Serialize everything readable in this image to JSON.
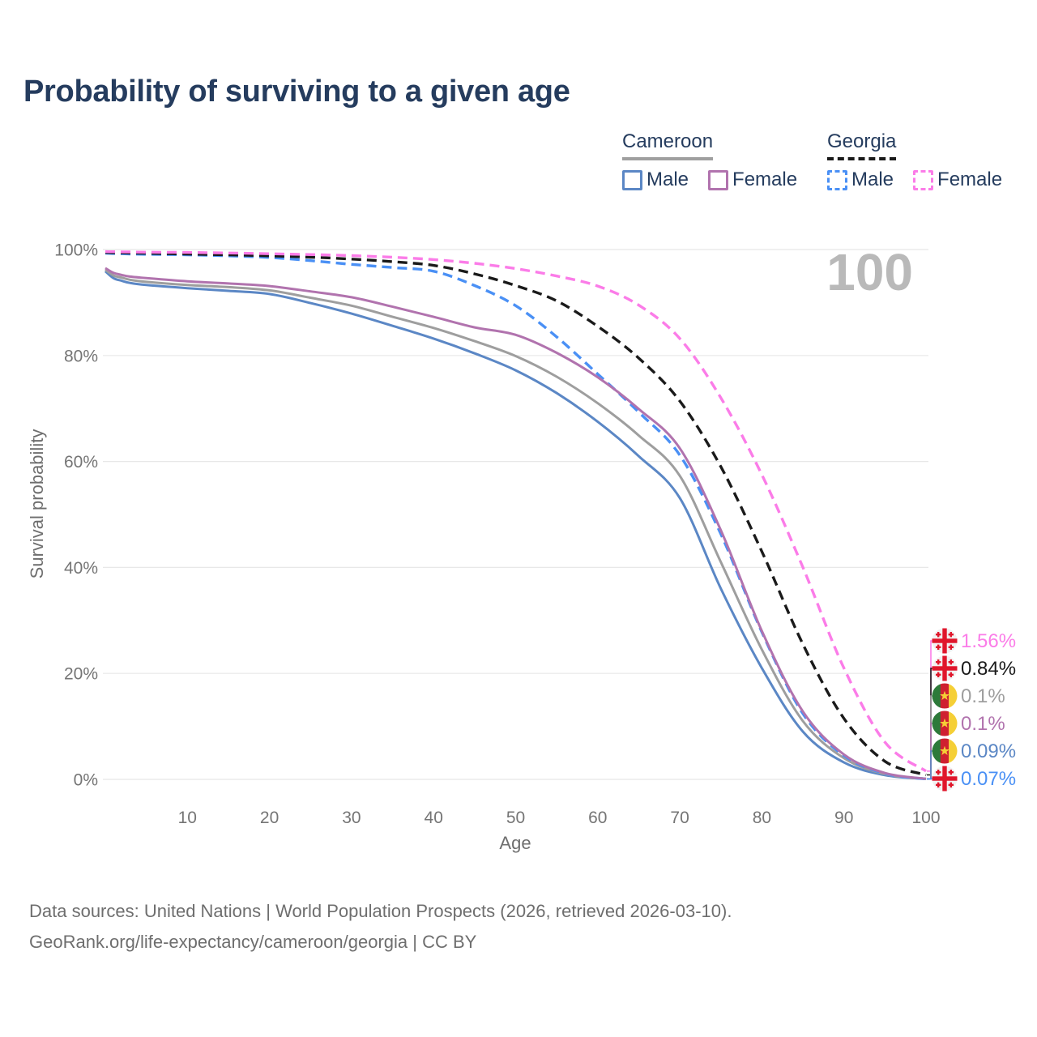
{
  "title": "Probability of surviving to a given age",
  "watermark": "100",
  "legend": {
    "groups": [
      {
        "country": "Cameroon",
        "line_style": "solid",
        "underline_color": "#9f9f9f",
        "items": [
          {
            "label": "Male",
            "color": "#5b87c5"
          },
          {
            "label": "Female",
            "color": "#b173ae"
          }
        ]
      },
      {
        "country": "Georgia",
        "line_style": "dashed",
        "underline_color": "#1a1a1a",
        "items": [
          {
            "label": "Male",
            "color": "#4a90f5"
          },
          {
            "label": "Female",
            "color": "#fb7ce8"
          }
        ]
      }
    ]
  },
  "chart_data": {
    "type": "line",
    "title": "Probability of surviving to a given age",
    "xlabel": "Age",
    "ylabel": "Survival probability",
    "xlim": [
      0,
      100
    ],
    "ylim": [
      0,
      100
    ],
    "grid": true,
    "legend_position": "top-right",
    "x_ticks": [
      {
        "value": 10,
        "label": "10"
      },
      {
        "value": 20,
        "label": "20"
      },
      {
        "value": 30,
        "label": "30"
      },
      {
        "value": 40,
        "label": "40"
      },
      {
        "value": 50,
        "label": "50"
      },
      {
        "value": 60,
        "label": "60"
      },
      {
        "value": 70,
        "label": "70"
      },
      {
        "value": 80,
        "label": "80"
      },
      {
        "value": 90,
        "label": "90"
      },
      {
        "value": 100,
        "label": "100"
      }
    ],
    "y_ticks": [
      {
        "value": 0,
        "label": "0%"
      },
      {
        "value": 20,
        "label": "20%"
      },
      {
        "value": 40,
        "label": "40%"
      },
      {
        "value": 60,
        "label": "60%"
      },
      {
        "value": 80,
        "label": "80%"
      },
      {
        "value": 100,
        "label": "100%"
      }
    ],
    "x": [
      0,
      1,
      2,
      3,
      5,
      10,
      15,
      20,
      25,
      30,
      35,
      40,
      45,
      50,
      55,
      60,
      65,
      70,
      75,
      80,
      85,
      90,
      95,
      100
    ],
    "series": [
      {
        "name": "Cameroon Male",
        "country": "Cameroon",
        "sex": "Male",
        "style": "solid",
        "color": "#5b87c5",
        "flag": "cameroon-flag-icon",
        "end_label": "0.09%",
        "values": [
          95.9,
          94.6,
          94.1,
          93.7,
          93.3,
          92.7,
          92.2,
          91.6,
          89.9,
          87.9,
          85.6,
          83.2,
          80.4,
          77.2,
          72.9,
          67.5,
          61,
          53.1,
          36,
          21,
          9,
          3.2,
          0.8,
          0.09
        ]
      },
      {
        "name": "Cameroon Average",
        "country": "Cameroon",
        "sex": "Both",
        "style": "solid",
        "color": "#9e9e9e",
        "flag": "cameroon-flag-icon",
        "end_label": "0.1%",
        "values": [
          96.2,
          95.1,
          94.7,
          94.3,
          93.9,
          93.3,
          92.9,
          92.3,
          90.9,
          89.4,
          87.3,
          85.2,
          82.7,
          79.9,
          76,
          71,
          64.9,
          57.3,
          41,
          24.5,
          11,
          4,
          1,
          0.1
        ]
      },
      {
        "name": "Georgia Male",
        "country": "Georgia",
        "sex": "Male",
        "style": "dashed",
        "color": "#4a90f5",
        "flag": "georgia-flag-icon",
        "end_label": "0.07%",
        "values": [
          99.3,
          99.25,
          99.2,
          99.15,
          99.1,
          99,
          98.8,
          98.5,
          97.9,
          97.2,
          96.6,
          95.9,
          93.2,
          89.4,
          83.5,
          76.5,
          69.3,
          61.2,
          46.3,
          27.8,
          12.4,
          4.5,
          1.1,
          0.07
        ]
      },
      {
        "name": "Cameroon Female",
        "country": "Cameroon",
        "sex": "Female",
        "style": "solid",
        "color": "#b173ae",
        "flag": "cameroon-flag-icon",
        "end_label": "0.1%",
        "values": [
          96.5,
          95.6,
          95.2,
          94.9,
          94.6,
          94,
          93.6,
          93.1,
          92.1,
          91,
          89.2,
          87.3,
          85.3,
          83.9,
          80.5,
          75.9,
          69.9,
          62.5,
          47,
          28,
          12.8,
          4.7,
          1.2,
          0.1
        ]
      },
      {
        "name": "Georgia Average",
        "country": "Georgia",
        "sex": "Both",
        "style": "dashed",
        "color": "#1a1a1a",
        "flag": "georgia-flag-icon",
        "end_label": "0.84%",
        "values": [
          99.45,
          99.4,
          99.38,
          99.35,
          99.3,
          99.15,
          99,
          98.8,
          98.55,
          98.2,
          97.7,
          97,
          95.4,
          93.2,
          90.3,
          85.5,
          79.5,
          71.4,
          59,
          43,
          25.5,
          11.5,
          3.4,
          0.84
        ]
      },
      {
        "name": "Georgia Female",
        "country": "Georgia",
        "sex": "Female",
        "style": "dashed",
        "color": "#fb7ce8",
        "flag": "georgia-flag-icon",
        "end_label": "1.56%",
        "values": [
          99.6,
          99.58,
          99.56,
          99.54,
          99.5,
          99.45,
          99.35,
          99.2,
          99.05,
          98.85,
          98.55,
          98.1,
          97.4,
          96.4,
          95,
          93.1,
          89.5,
          83.2,
          72,
          57.5,
          40,
          21,
          7,
          1.56
        ]
      }
    ],
    "flag_colors": {
      "georgia_red": "#e0162b",
      "georgia_bg": "#f1f1f1",
      "cameroon_green": "#2d7a3a",
      "cameroon_red": "#cf2030",
      "cameroon_yellow": "#f5cf36"
    }
  },
  "footer": {
    "line1": "Data sources: United Nations | World Population Prospects (2026, retrieved 2026-03-10).",
    "line2": "GeoRank.org/life-expectancy/cameroon/georgia | CC BY"
  }
}
